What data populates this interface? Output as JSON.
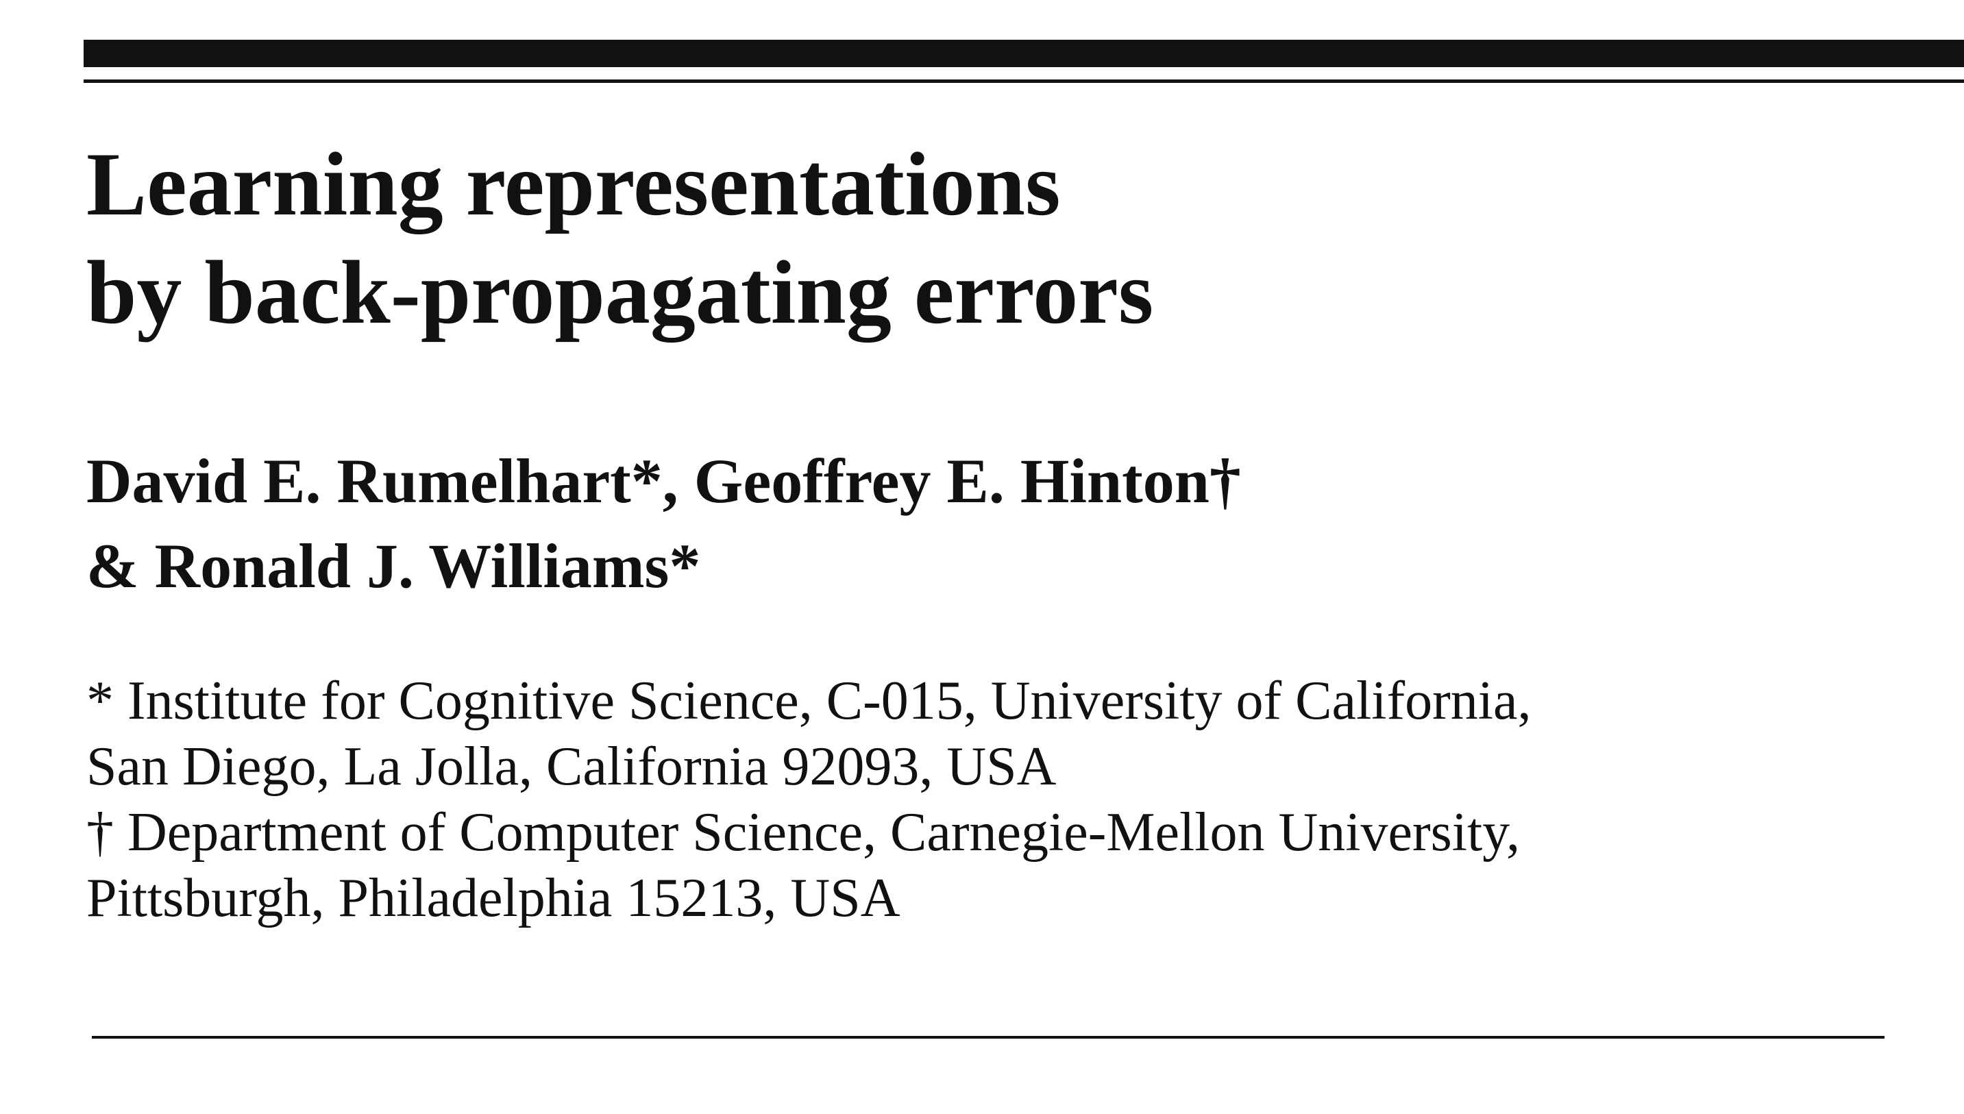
{
  "title": {
    "line1": "Learning representations",
    "line2": "by back-propagating errors"
  },
  "authors": {
    "line1": "David E. Rumelhart*, Geoffrey E. Hinton†",
    "line2": "& Ronald J. Williams*"
  },
  "affiliations": {
    "line1": "* Institute for Cognitive Science, C-015, University of California,",
    "line2": "San Diego, La Jolla, California 92093, USA",
    "line3": "† Department of Computer Science, Carnegie-Mellon University,",
    "line4": "Pittsburgh, Philadelphia 15213, USA"
  }
}
